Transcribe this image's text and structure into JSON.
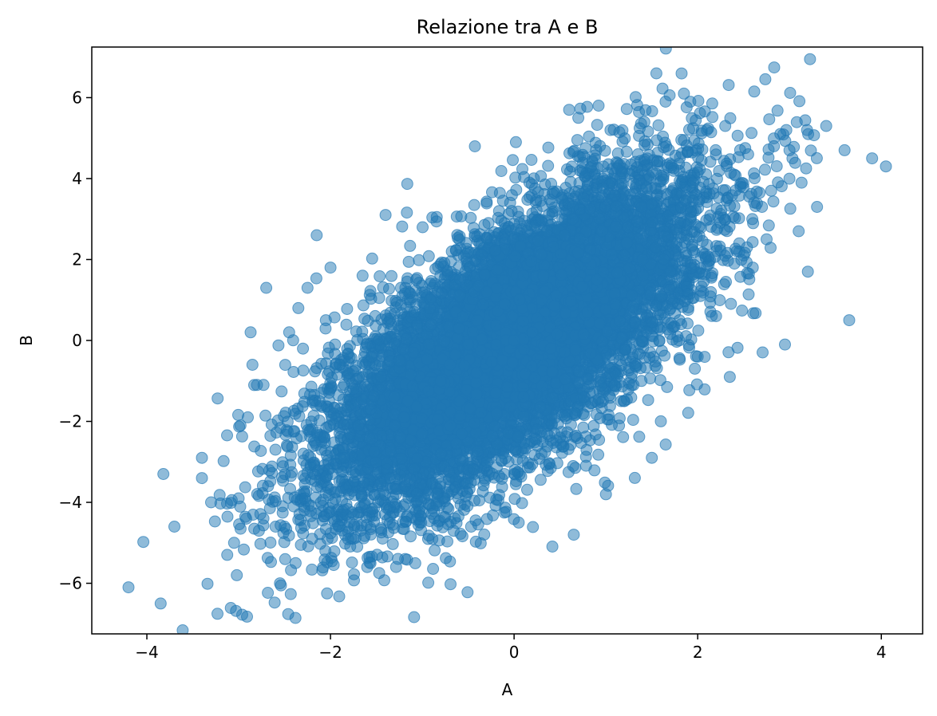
{
  "chart_data": {
    "type": "scatter",
    "title": "Relazione tra A e B",
    "xlabel": "A",
    "ylabel": "B",
    "xlim": [
      -4.6,
      4.45
    ],
    "ylim": [
      -7.25,
      7.25
    ],
    "xticks": [
      -4,
      -2,
      0,
      2,
      4
    ],
    "yticks": [
      -6,
      -4,
      -2,
      0,
      2,
      4,
      6
    ],
    "xtick_labels": [
      "−4",
      "−2",
      "0",
      "2",
      "4"
    ],
    "ytick_labels": [
      "−6",
      "−4",
      "−2",
      "0",
      "2",
      "4",
      "6"
    ],
    "grid": false,
    "legend": "none",
    "marker_color": "#1f77b4",
    "marker_alpha": 0.5,
    "points_estimated_total": 10000,
    "correlation": 0.7,
    "series": [
      {
        "x": [
          -4.2,
          -3.85,
          -3.82,
          -3.7,
          -3.4,
          -3.4,
          -3.3,
          -3.05,
          -3.02,
          -3.0,
          -2.98,
          -2.9,
          -2.87,
          -2.85,
          -2.8,
          -2.78,
          -2.73,
          -2.7,
          -2.68,
          -2.6,
          -2.55,
          -2.5,
          -2.45,
          -2.4,
          -2.38,
          -2.35,
          -2.3,
          -2.28,
          -2.25,
          -2.2,
          -2.15,
          -2.12,
          -2.1,
          -2.05,
          -2.0,
          -1.98,
          -1.95,
          -1.9,
          -1.85,
          -1.8,
          -1.75,
          -1.7,
          -1.65,
          -1.6,
          -1.55,
          -1.5,
          -1.45,
          -1.4,
          -1.35,
          -1.3,
          -1.25,
          -1.2,
          -1.1,
          -1.0,
          -0.9,
          -0.8,
          -0.7,
          -0.6,
          -0.5,
          -0.4,
          -0.3,
          -0.2,
          -0.1,
          0.0,
          0.02,
          0.05,
          0.1,
          0.2,
          0.3,
          0.4,
          0.5,
          0.55,
          0.6,
          0.65,
          0.7,
          0.8,
          0.9,
          1.0,
          1.05,
          1.1,
          1.2,
          1.3,
          1.35,
          1.4,
          1.5,
          1.55,
          1.6,
          1.65,
          1.7,
          1.8,
          1.85,
          1.9,
          1.95,
          2.0,
          2.1,
          2.2,
          2.3,
          2.35,
          2.4,
          2.5,
          2.55,
          2.6,
          2.7,
          2.75,
          2.8,
          2.9,
          2.95,
          3.0,
          3.1,
          3.2,
          3.3,
          3.4,
          3.6,
          3.65,
          3.9,
          4.05
        ],
        "y": [
          -6.1,
          -6.5,
          -3.3,
          -4.6,
          -2.9,
          -3.4,
          -4.0,
          -5.0,
          -5.8,
          -3.9,
          -2.1,
          -1.9,
          0.2,
          -0.6,
          -1.1,
          -4.7,
          -4.4,
          1.3,
          -3.6,
          -2.7,
          -6.0,
          -4.6,
          0.2,
          -4.1,
          -5.5,
          0.8,
          -0.2,
          -3.9,
          1.3,
          -4.9,
          2.6,
          -1.5,
          -2.7,
          0.5,
          1.8,
          -3.3,
          -0.1,
          -0.6,
          -2.9,
          -3.8,
          -1.2,
          -4.3,
          1.6,
          -5.6,
          -0.4,
          -1.8,
          -0.9,
          3.1,
          -3.4,
          -2.1,
          -0.5,
          -1.9,
          -0.3,
          -2.3,
          0.4,
          -1.0,
          -0.6,
          0.3,
          -0.1,
          0.5,
          1.2,
          -1.3,
          0.9,
          0.0,
          4.9,
          -4.5,
          1.6,
          0.2,
          1.0,
          -0.2,
          -2.4,
          2.6,
          5.7,
          -4.8,
          5.5,
          0.7,
          1.5,
          -3.8,
          5.2,
          0.9,
          2.1,
          -1.1,
          4.6,
          2.0,
          -2.9,
          6.6,
          1.1,
          5.9,
          1.7,
          0.5,
          6.1,
          2.5,
          3.9,
          -0.4,
          5.2,
          0.6,
          5.3,
          -0.9,
          1.9,
          2.1,
          4.6,
          1.8,
          3.3,
          2.5,
          3.7,
          5.1,
          -0.1,
          4.7,
          2.7,
          1.7,
          3.3,
          5.3,
          4.7,
          0.5,
          4.5,
          4.3
        ]
      }
    ]
  }
}
